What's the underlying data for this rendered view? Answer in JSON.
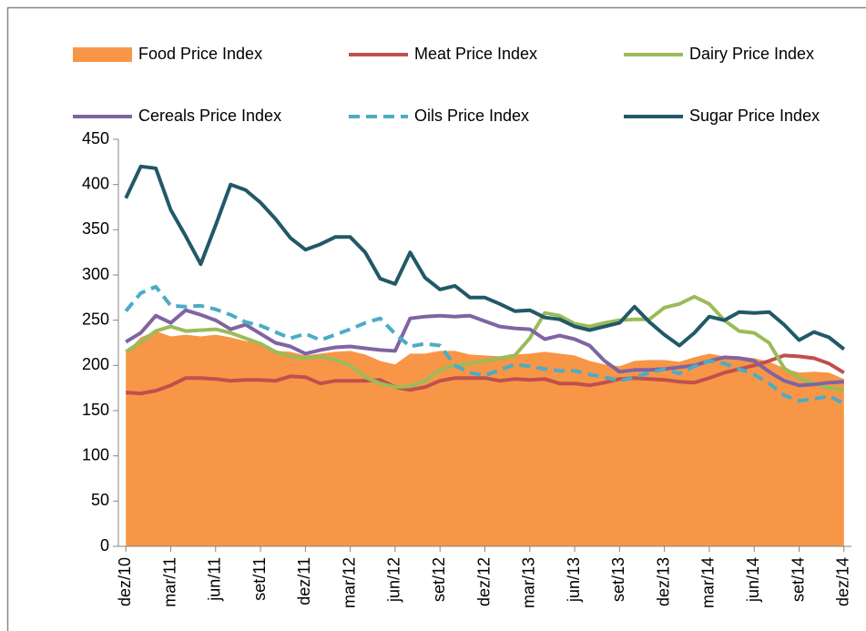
{
  "chart_data": {
    "type": "line",
    "categories": [
      "dez/10",
      null,
      null,
      "mar/11",
      null,
      null,
      "jun/11",
      null,
      null,
      "set/11",
      null,
      null,
      "dez/11",
      null,
      null,
      "mar/12",
      null,
      null,
      "jun/12",
      null,
      null,
      "set/12",
      null,
      null,
      "dez/12",
      null,
      null,
      "mar/13",
      null,
      null,
      "jun/13",
      null,
      null,
      "set/13",
      null,
      null,
      "dez/13",
      null,
      null,
      "mar/14",
      null,
      null,
      "jun/14",
      null,
      null,
      "set/14",
      null,
      null,
      "dez/14"
    ],
    "series": [
      {
        "name": "Food Price Index",
        "color": "#f79646",
        "kind": "area",
        "values": [
          214,
          231,
          238,
          232,
          234,
          232,
          234,
          231,
          227,
          225,
          216,
          215,
          211,
          213,
          215,
          216,
          212,
          205,
          201,
          213,
          213,
          216,
          216,
          212,
          211,
          210,
          212,
          213,
          215,
          213,
          211,
          205,
          201,
          199,
          205,
          206,
          206,
          204,
          209,
          213,
          210,
          210,
          208,
          204,
          197,
          192,
          193,
          192,
          185
        ]
      },
      {
        "name": "Meat Price Index",
        "color": "#c0504d",
        "values": [
          170,
          169,
          172,
          178,
          186,
          186,
          185,
          183,
          184,
          184,
          183,
          188,
          187,
          180,
          183,
          183,
          183,
          184,
          176,
          173,
          176,
          183,
          186,
          186,
          186,
          183,
          185,
          184,
          185,
          180,
          180,
          178,
          181,
          185,
          186,
          185,
          184,
          182,
          181,
          186,
          192,
          196,
          200,
          205,
          211,
          210,
          208,
          202,
          192
        ]
      },
      {
        "name": "Dairy Price Index",
        "color": "#9bbb59",
        "values": [
          215,
          226,
          238,
          243,
          238,
          239,
          240,
          236,
          230,
          224,
          215,
          210,
          208,
          210,
          206,
          200,
          187,
          180,
          176,
          177,
          183,
          195,
          200,
          202,
          205,
          208,
          211,
          230,
          258,
          255,
          246,
          243,
          247,
          250,
          251,
          251,
          264,
          268,
          276,
          268,
          250,
          238,
          236,
          225,
          197,
          186,
          180,
          175,
          173
        ]
      },
      {
        "name": "Cereals Price Index",
        "color": "#8064a2",
        "values": [
          226,
          236,
          255,
          247,
          261,
          256,
          250,
          240,
          245,
          235,
          225,
          221,
          213,
          217,
          220,
          221,
          219,
          217,
          216,
          252,
          254,
          255,
          254,
          255,
          249,
          243,
          241,
          240,
          229,
          233,
          229,
          222,
          205,
          193,
          195,
          195,
          196,
          198,
          200,
          205,
          209,
          208,
          205,
          193,
          183,
          178,
          179,
          181,
          182
        ]
      },
      {
        "name": "Oils Price Index",
        "color": "#4bacc6",
        "dashed": true,
        "values": [
          260,
          280,
          287,
          266,
          265,
          266,
          262,
          256,
          248,
          244,
          237,
          230,
          235,
          228,
          234,
          240,
          247,
          252,
          235,
          221,
          224,
          222,
          200,
          192,
          189,
          195,
          201,
          199,
          196,
          194,
          194,
          190,
          187,
          183,
          187,
          192,
          196,
          191,
          199,
          205,
          202,
          196,
          190,
          180,
          167,
          161,
          163,
          166,
          158
        ]
      },
      {
        "name": "Sugar Price Index",
        "color": "#215968",
        "values": [
          385,
          420,
          418,
          372,
          343,
          312,
          355,
          400,
          394,
          380,
          362,
          341,
          328,
          334,
          342,
          342,
          325,
          296,
          290,
          325,
          297,
          284,
          288,
          275,
          275,
          268,
          260,
          261,
          253,
          251,
          243,
          239,
          243,
          247,
          265,
          248,
          234,
          222,
          236,
          254,
          250,
          259,
          258,
          259,
          245,
          228,
          237,
          231,
          218
        ]
      }
    ],
    "ylim": [
      0,
      450
    ],
    "yticks": [
      0,
      50,
      100,
      150,
      200,
      250,
      300,
      350,
      400,
      450
    ],
    "legend": "top",
    "grid": false
  }
}
